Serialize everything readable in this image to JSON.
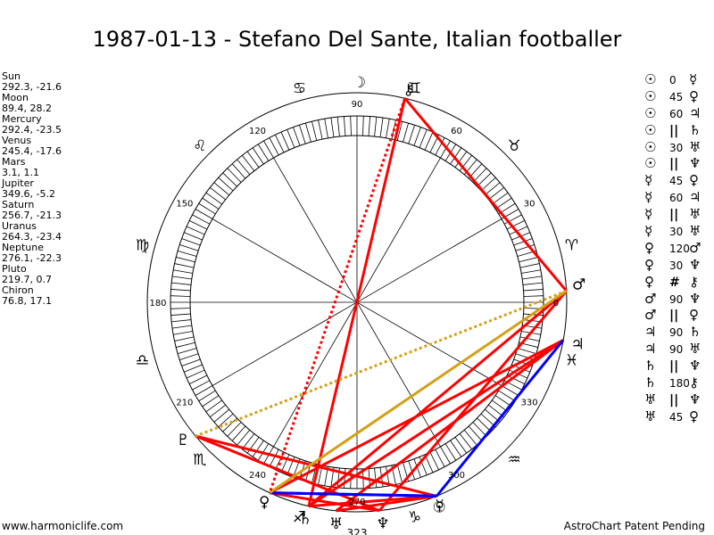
{
  "title": "1987-01-13 - Stefano Del Sante, Italian footballer",
  "planets": [
    {
      "name": "Sun",
      "coords": "292.3, -21.6"
    },
    {
      "name": "Moon",
      "coords": "89.4, 28.2"
    },
    {
      "name": "Mercury",
      "coords": "292.4, -23.5"
    },
    {
      "name": "Venus",
      "coords": "245.4, -17.6"
    },
    {
      "name": "Mars",
      "coords": "3.1, 1.1"
    },
    {
      "name": "Jupiter",
      "coords": "349.6, -5.2"
    },
    {
      "name": "Saturn",
      "coords": "256.7, -21.3"
    },
    {
      "name": "Uranus",
      "coords": "264.3, -23.4"
    },
    {
      "name": "Neptune",
      "coords": "276.1, -22.3"
    },
    {
      "name": "Pluto",
      "coords": "219.7, 0.7"
    },
    {
      "name": "Chiron",
      "coords": "76.8, 17.1"
    }
  ],
  "aspects": [
    {
      "p1": "☉",
      "angle": "0",
      "p2": "☿"
    },
    {
      "p1": "☉",
      "angle": "45",
      "p2": "♀"
    },
    {
      "p1": "☉",
      "angle": "60",
      "p2": "♃"
    },
    {
      "p1": "☉",
      "angle": "||",
      "p2": "♄"
    },
    {
      "p1": "☉",
      "angle": "30",
      "p2": "♅"
    },
    {
      "p1": "☉",
      "angle": "||",
      "p2": "♆"
    },
    {
      "p1": "☿",
      "angle": "45",
      "p2": "♀"
    },
    {
      "p1": "☿",
      "angle": "60",
      "p2": "♃"
    },
    {
      "p1": "☿",
      "angle": "||",
      "p2": "♅"
    },
    {
      "p1": "☿",
      "angle": "30",
      "p2": "♅"
    },
    {
      "p1": "♀",
      "angle": "120",
      "p2": "♂"
    },
    {
      "p1": "♀",
      "angle": "30",
      "p2": "♆"
    },
    {
      "p1": "♀",
      "angle": "#",
      "p2": "⚷"
    },
    {
      "p1": "♂",
      "angle": "90",
      "p2": "♆"
    },
    {
      "p1": "♂",
      "angle": "||",
      "p2": "♀"
    },
    {
      "p1": "♃",
      "angle": "90",
      "p2": "♄"
    },
    {
      "p1": "♃",
      "angle": "90",
      "p2": "♅"
    },
    {
      "p1": "♄",
      "angle": "||",
      "p2": "♆"
    },
    {
      "p1": "♄",
      "angle": "180",
      "p2": "⚷"
    },
    {
      "p1": "♅",
      "angle": "||",
      "p2": "♆"
    },
    {
      "p1": "♅",
      "angle": "45",
      "p2": "♀"
    }
  ],
  "wheel": {
    "degree_labels": [
      "0",
      "30",
      "60",
      "90",
      "120",
      "150",
      "180",
      "210",
      "240",
      "270",
      "300",
      "330"
    ],
    "sign_glyphs": [
      "♈",
      "♉",
      "♊",
      "♋",
      "♌",
      "♍",
      "♎",
      "♏",
      "♐",
      "♑",
      "♒",
      "♓"
    ],
    "planet_glyphs": {
      "sun": "☉",
      "moon": "☽",
      "mercury": "☿",
      "venus": "♀",
      "mars": "♂",
      "jupiter": "♃",
      "saturn": "♄",
      "uranus": "♅",
      "neptune": "♆",
      "pluto": "♇",
      "chiron": "⚷"
    },
    "marker_label": "323"
  },
  "colors": {
    "hard_aspect": "#ff0000",
    "soft_aspect": "#0000ff",
    "minor_aspect": "#d4a017",
    "wheel_line": "#000000"
  },
  "footer": {
    "left": "www.harmoniclife.com",
    "right": "AstroChart Patent Pending"
  }
}
